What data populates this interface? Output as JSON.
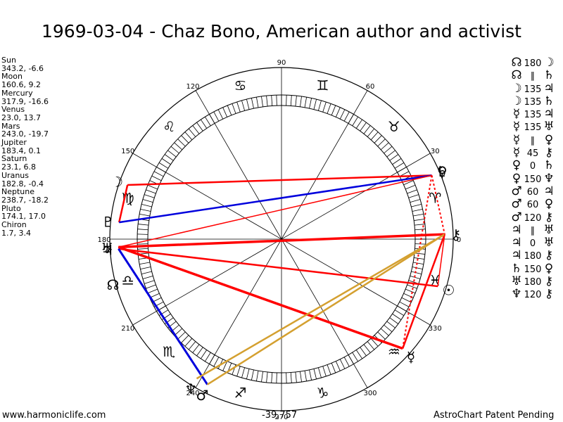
{
  "title": "1969-03-04 - Chaz Bono, American author and activist",
  "planets": [
    {
      "name": "Sun",
      "coords": "343.2, -6.6"
    },
    {
      "name": "Moon",
      "coords": "160.6, 9.2"
    },
    {
      "name": "Mercury",
      "coords": "317.9, -16.6"
    },
    {
      "name": "Venus",
      "coords": "23.0, 13.7"
    },
    {
      "name": "Mars",
      "coords": "243.0, -19.7"
    },
    {
      "name": "Jupiter",
      "coords": "183.4, 0.1"
    },
    {
      "name": "Saturn",
      "coords": "23.1, 6.8"
    },
    {
      "name": "Uranus",
      "coords": "182.8, -0.4"
    },
    {
      "name": "Neptune",
      "coords": "238.7, -18.2"
    },
    {
      "name": "Pluto",
      "coords": "174.1, 17.0"
    },
    {
      "name": "Chiron",
      "coords": "1.7, 3.4"
    }
  ],
  "aspects": [
    {
      "p1": "☊",
      "angle": "180",
      "p2": "☽"
    },
    {
      "p1": "☊",
      "angle": "∥",
      "p2": "♄"
    },
    {
      "p1": "☽",
      "angle": "135",
      "p2": "♃"
    },
    {
      "p1": "☽",
      "angle": "135",
      "p2": "♄"
    },
    {
      "p1": "☿",
      "angle": "135",
      "p2": "♃"
    },
    {
      "p1": "☿",
      "angle": "135",
      "p2": "♅"
    },
    {
      "p1": "☿",
      "angle": "∥",
      "p2": "♀"
    },
    {
      "p1": "☿",
      "angle": "45",
      "p2": "⚷"
    },
    {
      "p1": "♀",
      "angle": "0",
      "p2": "♄"
    },
    {
      "p1": "♀",
      "angle": "150",
      "p2": "♆"
    },
    {
      "p1": "♂",
      "angle": "60",
      "p2": "♃"
    },
    {
      "p1": "♂",
      "angle": "60",
      "p2": "♀"
    },
    {
      "p1": "♂",
      "angle": "120",
      "p2": "⚷"
    },
    {
      "p1": "♃",
      "angle": "∥",
      "p2": "♅"
    },
    {
      "p1": "♃",
      "angle": "0",
      "p2": "♅"
    },
    {
      "p1": "♃",
      "angle": "180",
      "p2": "⚷"
    },
    {
      "p1": "♄",
      "angle": "150",
      "p2": "♀"
    },
    {
      "p1": "♅",
      "angle": "180",
      "p2": "⚷"
    },
    {
      "p1": "♆",
      "angle": "120",
      "p2": "⚷"
    }
  ],
  "wheel": {
    "degree_labels": [
      "0",
      "30",
      "60",
      "90",
      "120",
      "150",
      "180",
      "210",
      "240",
      "270",
      "300",
      "330"
    ],
    "signs": [
      {
        "name": "Aries",
        "glyph": "♈",
        "lon": 15
      },
      {
        "name": "Taurus",
        "glyph": "♉",
        "lon": 45
      },
      {
        "name": "Gemini",
        "glyph": "♊",
        "lon": 75
      },
      {
        "name": "Cancer",
        "glyph": "♋",
        "lon": 105
      },
      {
        "name": "Leo",
        "glyph": "♌",
        "lon": 135
      },
      {
        "name": "Virgo",
        "glyph": "♍",
        "lon": 165
      },
      {
        "name": "Libra",
        "glyph": "♎",
        "lon": 195
      },
      {
        "name": "Scorpio",
        "glyph": "♏",
        "lon": 225
      },
      {
        "name": "Sagittarius",
        "glyph": "♐",
        "lon": 255
      },
      {
        "name": "Capricorn",
        "glyph": "♑",
        "lon": 285
      },
      {
        "name": "Aquarius",
        "glyph": "♒",
        "lon": 315
      },
      {
        "name": "Pisces",
        "glyph": "♓",
        "lon": 345
      }
    ],
    "bodies": [
      {
        "name": "Sun",
        "glyph": "☉",
        "lon": 343.2
      },
      {
        "name": "Moon",
        "glyph": "☽",
        "lon": 160.6
      },
      {
        "name": "Mercury",
        "glyph": "☿",
        "lon": 317.9
      },
      {
        "name": "Venus",
        "glyph": "♀",
        "lon": 23.0
      },
      {
        "name": "Mars",
        "glyph": "♂",
        "lon": 243.0
      },
      {
        "name": "Jupiter",
        "glyph": "♃",
        "lon": 183.4
      },
      {
        "name": "Saturn",
        "glyph": "♄",
        "lon": 23.1
      },
      {
        "name": "Uranus",
        "glyph": "♅",
        "lon": 182.8
      },
      {
        "name": "Neptune",
        "glyph": "♆",
        "lon": 238.7
      },
      {
        "name": "Pluto",
        "glyph": "♇",
        "lon": 174.1
      },
      {
        "name": "Chiron",
        "glyph": "⚷",
        "lon": 1.7
      },
      {
        "name": "Node",
        "glyph": "☊",
        "lon": 195
      }
    ],
    "colors": {
      "red": "#ff0000",
      "blue": "#0000dd",
      "gold": "#d4a030",
      "black": "#000000"
    }
  },
  "footer": {
    "left": "www.harmoniclife.com",
    "center": "-39,757",
    "right": "AstroChart Patent Pending"
  }
}
